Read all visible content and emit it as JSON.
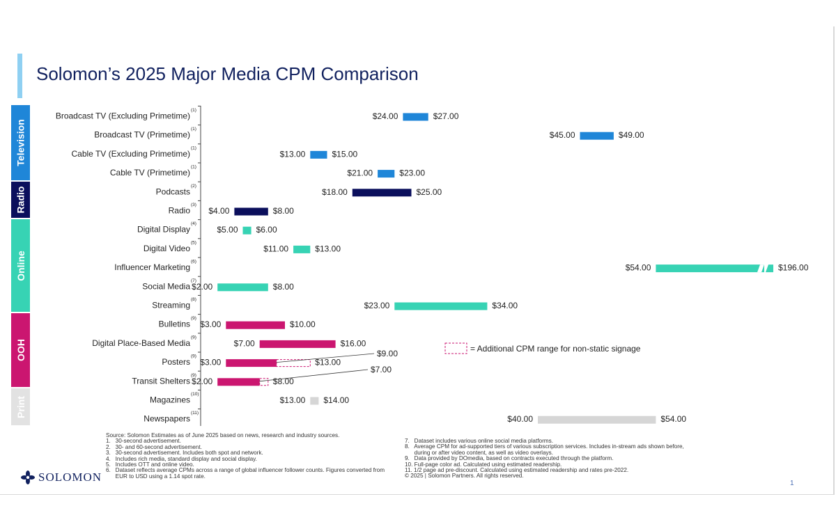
{
  "title": "Solomon’s 2025 Major Media CPM Comparison",
  "categories": [
    {
      "key": "television",
      "label": "Television",
      "color": "#1f86d8"
    },
    {
      "key": "radio",
      "label": "Radio",
      "color": "#0b0f5c"
    },
    {
      "key": "online",
      "label": "Online",
      "color": "#37d3b4"
    },
    {
      "key": "ooh",
      "label": "OOH",
      "color": "#cb1670"
    },
    {
      "key": "print",
      "label": "Print",
      "color": "#d6d6d6"
    }
  ],
  "chart_data": {
    "type": "range-bar",
    "title": "Solomon’s 2025 Major Media CPM Comparison",
    "unit": "USD CPM",
    "x_range": [
      0,
      54
    ],
    "break_note": "Influencer Marketing axis break between $54.00 and $196.00",
    "rows": [
      {
        "label": "Broadcast TV (Excluding Primetime)",
        "note": "(1)",
        "category": "television",
        "low": 24,
        "high": 27,
        "low_label": "$24.00",
        "high_label": "$27.00"
      },
      {
        "label": "Broadcast TV (Primetime)",
        "note": "(1)",
        "category": "television",
        "low": 45,
        "high": 49,
        "low_label": "$45.00",
        "high_label": "$49.00"
      },
      {
        "label": "Cable TV (Excluding Primetime)",
        "note": "(1)",
        "category": "television",
        "low": 13,
        "high": 15,
        "low_label": "$13.00",
        "high_label": "$15.00"
      },
      {
        "label": "Cable TV (Primetime)",
        "note": "(1)",
        "category": "television",
        "low": 21,
        "high": 23,
        "low_label": "$21.00",
        "high_label": "$23.00"
      },
      {
        "label": "Podcasts",
        "note": "(2)",
        "category": "radio",
        "low": 18,
        "high": 25,
        "low_label": "$18.00",
        "high_label": "$25.00"
      },
      {
        "label": "Radio",
        "note": "(3)",
        "category": "radio",
        "low": 4,
        "high": 8,
        "low_label": "$4.00",
        "high_label": "$8.00"
      },
      {
        "label": "Digital Display",
        "note": "(4)",
        "category": "online",
        "low": 5,
        "high": 6,
        "low_label": "$5.00",
        "high_label": "$6.00"
      },
      {
        "label": "Digital Video",
        "note": "(5)",
        "category": "online",
        "low": 11,
        "high": 13,
        "low_label": "$11.00",
        "high_label": "$13.00"
      },
      {
        "label": "Influencer Marketing",
        "note": "(6)",
        "category": "online",
        "low": 54,
        "high": 196,
        "low_label": "$54.00",
        "high_label": "$196.00",
        "broken": true
      },
      {
        "label": "Social Media",
        "note": "(7)",
        "category": "online",
        "low": 2,
        "high": 8,
        "low_label": "$2.00",
        "high_label": "$8.00"
      },
      {
        "label": "Streaming",
        "note": "(8)",
        "category": "online",
        "low": 23,
        "high": 34,
        "low_label": "$23.00",
        "high_label": "$34.00"
      },
      {
        "label": "Bulletins",
        "note": "(9)",
        "category": "ooh",
        "low": 3,
        "high": 10,
        "low_label": "$3.00",
        "high_label": "$10.00"
      },
      {
        "label": "Digital Place-Based Media",
        "note": "(9)",
        "category": "ooh",
        "low": 7,
        "high": 16,
        "low_label": "$7.00",
        "high_label": "$16.00"
      },
      {
        "label": "Posters",
        "note": "(9)",
        "category": "ooh",
        "low": 3,
        "high": 9,
        "low_label": "$3.00",
        "high_label": "$13.00",
        "ext_high": 13,
        "callout": "$9.00"
      },
      {
        "label": "Transit Shelters",
        "note": "(9)",
        "category": "ooh",
        "low": 2,
        "high": 7,
        "low_label": "$2.00",
        "high_label": "$8.00",
        "ext_high": 8,
        "callout": "$7.00"
      },
      {
        "label": "Magazines",
        "note": "(10)",
        "category": "print",
        "low": 13,
        "high": 14,
        "low_label": "$13.00",
        "high_label": "$14.00"
      },
      {
        "label": "Newspapers",
        "note": "(11)",
        "category": "print",
        "low": 40,
        "high": 54,
        "low_label": "$40.00",
        "high_label": "$54.00"
      }
    ],
    "legend": [
      {
        "symbol": "dashed-box",
        "text": "= Additional CPM range for non-static signage"
      }
    ]
  },
  "footer": {
    "left": "Source: Solomon Estimates as of June 2025 based on news, research and industry sources.\n1.   30-second advertisement.\n2.   30- and 60-second advertisement.\n3.   30-second advertisement. Includes both spot and network.\n4.   Includes rich media, standard display and social display.\n5.   Includes OTT and online video.\n6.   Dataset reflects average CPMs across a range of global influencer follower counts. Figures converted from\n      EUR to USD using a 1.14 spot rate.",
    "right": "7.   Dataset includes various online social media platforms.\n8.   Average CPM for ad-supported tiers of various subscription services. Includes in-stream ads shown before,\n      during or after video content, as well as video overlays.\n9.   Data provided by DOmedia, based on contracts executed through the platform.\n10. Full-page color ad. Calculated using estimated readership.\n11. 1/2 page ad pre-discount. Calculated using estimated readership and rates pre-2022.\n© 2025 | Solomon Partners. All rights reserved."
  },
  "logo_text": "SOLOMON",
  "page_number": "1"
}
